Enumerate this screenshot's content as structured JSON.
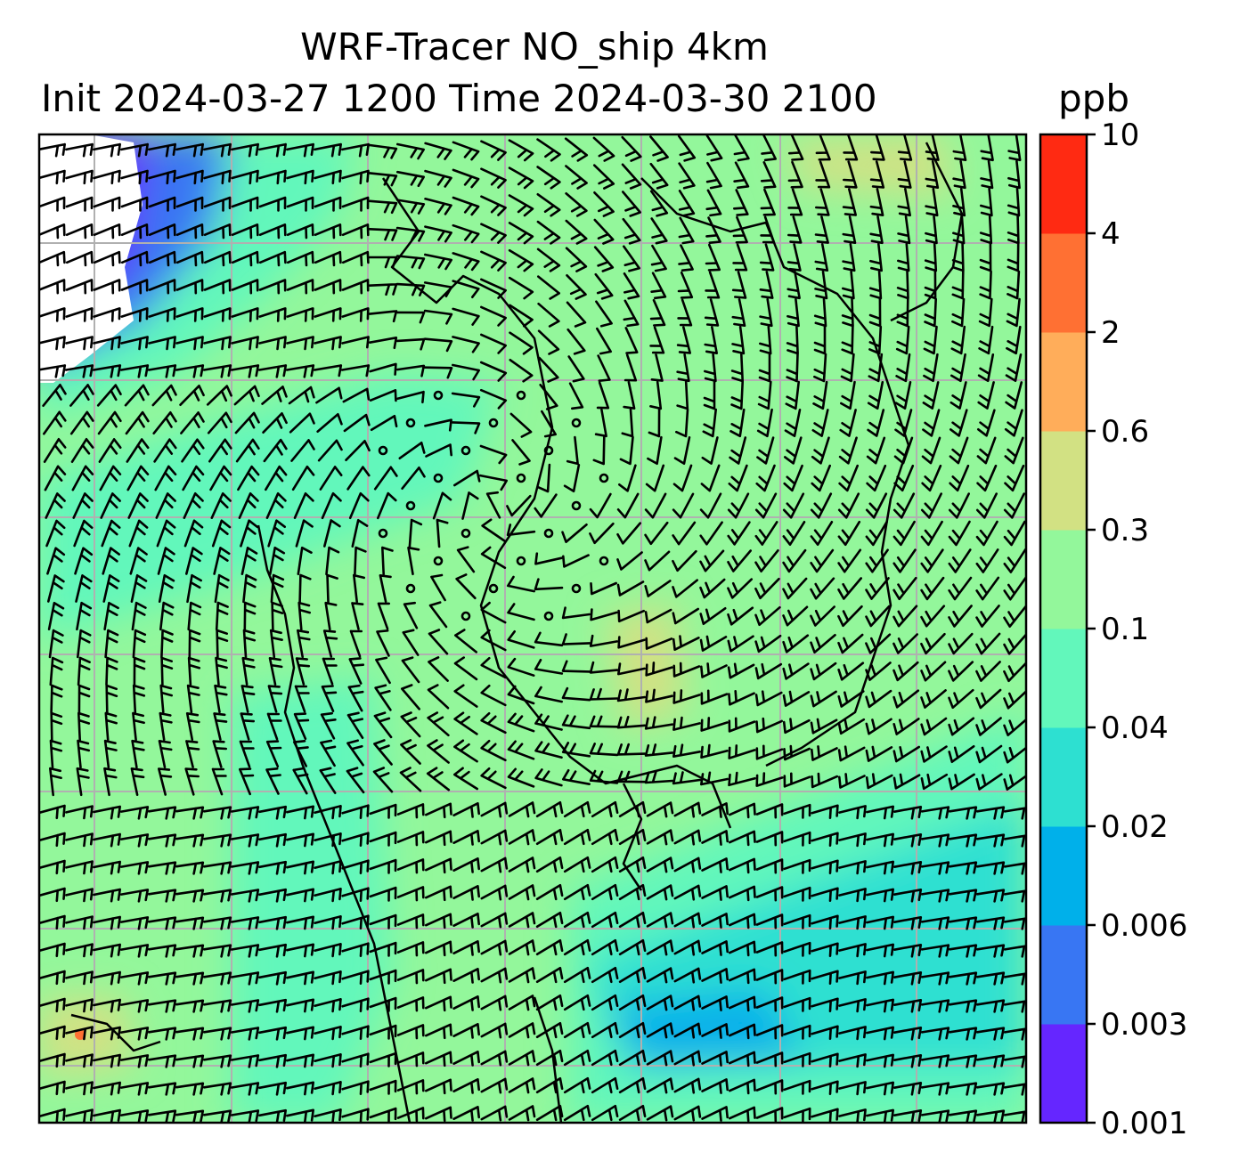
{
  "title": {
    "line1": "WRF-Tracer NO_ship 4km",
    "line2": "Init 2024-03-27 1200 Time 2024-03-30 2100"
  },
  "colorbar": {
    "unit": "ppb",
    "tick_labels": [
      "0.001",
      "0.003",
      "0.006",
      "0.02",
      "0.04",
      "0.1",
      "0.3",
      "0.6",
      "2",
      "4",
      "10"
    ],
    "colors": [
      "#6526ff",
      "#3876f3",
      "#00b0ea",
      "#2de0d1",
      "#62f7bb",
      "#93f79b",
      "#d2e183",
      "#ffad5a",
      "#ff7033",
      "#ff2a12"
    ]
  },
  "map_colors": {
    "below_range": "#ffffff",
    "gridline": "#b0b0b0",
    "coastline": "#000000",
    "barb": "#000000"
  }
}
